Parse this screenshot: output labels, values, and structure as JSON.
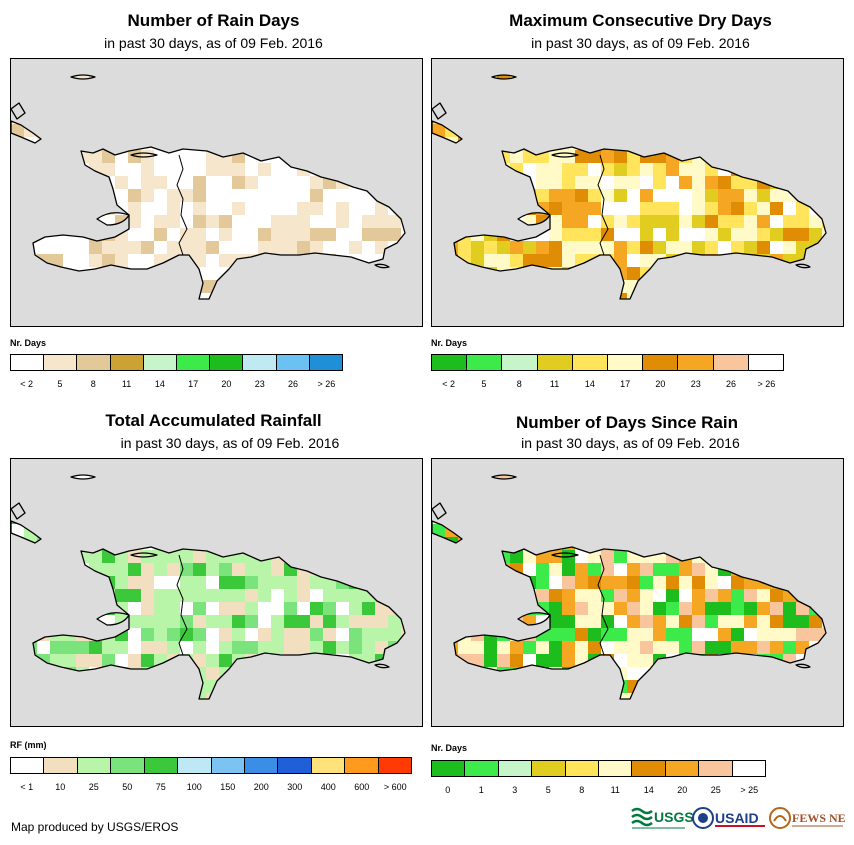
{
  "panels": [
    {
      "id": "rain_days",
      "title": "Number of Rain Days",
      "subtitle": "in past 30 days, as of 09 Feb. 2016",
      "legend_title": "Nr. Days",
      "legend_colors": [
        "#ffffff",
        "#f5e6cc",
        "#e3c89a",
        "#cca235",
        "#c5f5c8",
        "#3cea4a",
        "#1cbd1c",
        "#bfeaf3",
        "#6bc1f2",
        "#1f8fd8"
      ],
      "legend_labels": [
        "< 2",
        "5",
        "8",
        "11",
        "14",
        "17",
        "20",
        "23",
        "26",
        "> 26"
      ]
    },
    {
      "id": "dry_days",
      "title": "Maximum Consecutive Dry Days",
      "subtitle": "in past 30 days, as of 09 Feb. 2016",
      "legend_title": "Nr. Days",
      "legend_colors": [
        "#1cbd1c",
        "#3cea4a",
        "#c5f5c8",
        "#e0cd20",
        "#ffe45c",
        "#fffac8",
        "#e08c05",
        "#f5a623",
        "#f8c59c",
        "#ffffff"
      ],
      "legend_labels": [
        "< 2",
        "5",
        "8",
        "11",
        "14",
        "17",
        "20",
        "23",
        "26",
        "> 26"
      ]
    },
    {
      "id": "rainfall",
      "title": "Total Accumulated Rainfall",
      "subtitle": "in past 30 days, as of 09 Feb. 2016",
      "legend_title": "RF (mm)",
      "legend_colors": [
        "#ffffff",
        "#f1dfbf",
        "#b8f5a8",
        "#7be37b",
        "#3bc93b",
        "#bfe8f5",
        "#7dc3f2",
        "#3b8ee6",
        "#1f5fd8",
        "#ffe27a",
        "#ff9a1f",
        "#ff3a05"
      ],
      "legend_labels": [
        "< 1",
        "10",
        "25",
        "50",
        "75",
        "100",
        "150",
        "200",
        "300",
        "400",
        "600",
        "> 600"
      ]
    },
    {
      "id": "days_since",
      "title": "Number of Days Since Rain",
      "subtitle": "in past 30 days, as of 09 Feb. 2016",
      "legend_title": "Nr. Days",
      "legend_colors": [
        "#1cbd1c",
        "#3cea4a",
        "#c5f5c8",
        "#e0cd20",
        "#ffe45c",
        "#fffac8",
        "#e08c05",
        "#f5a623",
        "#f8c59c",
        "#ffffff"
      ],
      "legend_labels": [
        "0",
        "1",
        "3",
        "5",
        "8",
        "11",
        "14",
        "20",
        "25",
        "> 25"
      ]
    }
  ],
  "footer": "Map produced by USGS/EROS",
  "logos": {
    "usgs": "USGS",
    "usaid": "USAID",
    "fews": "FEWS NET"
  }
}
